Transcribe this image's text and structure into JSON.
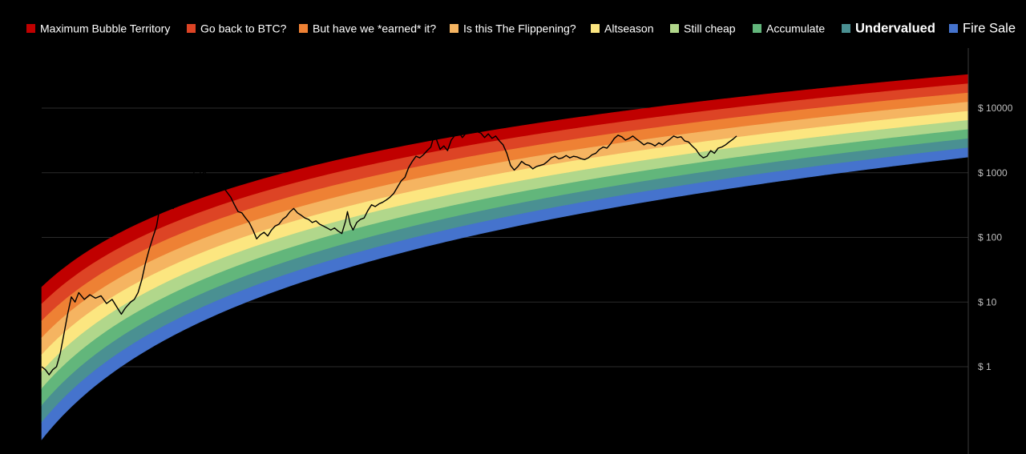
{
  "chart_data": {
    "type": "area",
    "title": "",
    "xlabel": "",
    "ylabel": "",
    "y_scale": "log",
    "grid": true,
    "legend_position": "top",
    "ylim": [
      0.07,
      45000
    ],
    "y_ticks": [
      {
        "value": 10000,
        "label": "$ 10000"
      },
      {
        "value": 1000,
        "label": "$ 1000"
      },
      {
        "value": 100,
        "label": "$ 100"
      },
      {
        "value": 10,
        "label": "$ 10"
      },
      {
        "value": 1,
        "label": "$ 1"
      }
    ],
    "bands": [
      {
        "name": "Maximum Bubble Territory",
        "color": "#c00000",
        "emphasis": "normal"
      },
      {
        "name": "Go back to BTC?",
        "color": "#dd4425",
        "emphasis": "normal"
      },
      {
        "name": "But have we *earned* it?",
        "color": "#ee8134",
        "emphasis": "normal"
      },
      {
        "name": "Is this The Flippening?",
        "color": "#f5b461",
        "emphasis": "normal"
      },
      {
        "name": "Altseason",
        "color": "#fce680",
        "emphasis": "normal"
      },
      {
        "name": "Still cheap",
        "color": "#b1d78b",
        "emphasis": "normal"
      },
      {
        "name": "Accumulate",
        "color": "#62b67b",
        "emphasis": "normal"
      },
      {
        "name": "Undervalued",
        "color": "#4a9092",
        "emphasis": "bold"
      },
      {
        "name": "Fire Sale",
        "color": "#4573cd",
        "emphasis": "large"
      }
    ],
    "band_model": {
      "a": 0.1,
      "b": 3,
      "top_start": 17,
      "top_end": 33000,
      "bottom_start": 0.075,
      "bottom_end": 1750
    },
    "price_series": {
      "color": "#000000",
      "points": [
        [
          0.0,
          1.0
        ],
        [
          0.004,
          0.9
        ],
        [
          0.008,
          0.75
        ],
        [
          0.012,
          0.9
        ],
        [
          0.016,
          1.0
        ],
        [
          0.02,
          1.6
        ],
        [
          0.024,
          3.2
        ],
        [
          0.028,
          6.5
        ],
        [
          0.032,
          12
        ],
        [
          0.036,
          10
        ],
        [
          0.04,
          14
        ],
        [
          0.046,
          11
        ],
        [
          0.052,
          13
        ],
        [
          0.058,
          11.5
        ],
        [
          0.064,
          12.5
        ],
        [
          0.07,
          9.5
        ],
        [
          0.076,
          11
        ],
        [
          0.082,
          8
        ],
        [
          0.086,
          6.5
        ],
        [
          0.09,
          8
        ],
        [
          0.096,
          10
        ],
        [
          0.1,
          11
        ],
        [
          0.104,
          14
        ],
        [
          0.108,
          22
        ],
        [
          0.112,
          40
        ],
        [
          0.116,
          65
        ],
        [
          0.12,
          100
        ],
        [
          0.124,
          150
        ],
        [
          0.126,
          220
        ],
        [
          0.128,
          330
        ],
        [
          0.131,
          390
        ],
        [
          0.134,
          300
        ],
        [
          0.138,
          330
        ],
        [
          0.142,
          280
        ],
        [
          0.146,
          350
        ],
        [
          0.15,
          320
        ],
        [
          0.154,
          390
        ],
        [
          0.158,
          500
        ],
        [
          0.162,
          750
        ],
        [
          0.166,
          1250
        ],
        [
          0.169,
          1300
        ],
        [
          0.172,
          900
        ],
        [
          0.176,
          1050
        ],
        [
          0.18,
          800
        ],
        [
          0.184,
          600
        ],
        [
          0.188,
          700
        ],
        [
          0.192,
          750
        ],
        [
          0.196,
          600
        ],
        [
          0.2,
          500
        ],
        [
          0.204,
          420
        ],
        [
          0.208,
          320
        ],
        [
          0.212,
          250
        ],
        [
          0.216,
          240
        ],
        [
          0.22,
          200
        ],
        [
          0.224,
          170
        ],
        [
          0.228,
          130
        ],
        [
          0.232,
          95
        ],
        [
          0.236,
          110
        ],
        [
          0.24,
          120
        ],
        [
          0.244,
          105
        ],
        [
          0.248,
          130
        ],
        [
          0.252,
          150
        ],
        [
          0.256,
          160
        ],
        [
          0.26,
          190
        ],
        [
          0.264,
          210
        ],
        [
          0.268,
          250
        ],
        [
          0.272,
          280
        ],
        [
          0.276,
          240
        ],
        [
          0.28,
          220
        ],
        [
          0.284,
          200
        ],
        [
          0.288,
          190
        ],
        [
          0.292,
          170
        ],
        [
          0.296,
          180
        ],
        [
          0.3,
          160
        ],
        [
          0.304,
          150
        ],
        [
          0.308,
          140
        ],
        [
          0.312,
          130
        ],
        [
          0.316,
          140
        ],
        [
          0.32,
          125
        ],
        [
          0.324,
          115
        ],
        [
          0.328,
          180
        ],
        [
          0.33,
          250
        ],
        [
          0.333,
          160
        ],
        [
          0.336,
          130
        ],
        [
          0.34,
          170
        ],
        [
          0.344,
          190
        ],
        [
          0.348,
          200
        ],
        [
          0.352,
          260
        ],
        [
          0.356,
          320
        ],
        [
          0.36,
          300
        ],
        [
          0.364,
          330
        ],
        [
          0.368,
          350
        ],
        [
          0.372,
          380
        ],
        [
          0.376,
          420
        ],
        [
          0.38,
          480
        ],
        [
          0.384,
          600
        ],
        [
          0.388,
          750
        ],
        [
          0.392,
          850
        ],
        [
          0.396,
          1200
        ],
        [
          0.4,
          1500
        ],
        [
          0.404,
          1800
        ],
        [
          0.408,
          1700
        ],
        [
          0.412,
          1900
        ],
        [
          0.416,
          2200
        ],
        [
          0.42,
          2500
        ],
        [
          0.424,
          4000
        ],
        [
          0.427,
          3000
        ],
        [
          0.43,
          2300
        ],
        [
          0.434,
          2600
        ],
        [
          0.438,
          2200
        ],
        [
          0.442,
          3200
        ],
        [
          0.446,
          3800
        ],
        [
          0.45,
          4300
        ],
        [
          0.454,
          3500
        ],
        [
          0.458,
          4100
        ],
        [
          0.462,
          4700
        ],
        [
          0.466,
          4600
        ],
        [
          0.47,
          4300
        ],
        [
          0.474,
          4100
        ],
        [
          0.478,
          3500
        ],
        [
          0.482,
          4000
        ],
        [
          0.486,
          3400
        ],
        [
          0.49,
          3700
        ],
        [
          0.494,
          3100
        ],
        [
          0.498,
          2700
        ],
        [
          0.502,
          2000
        ],
        [
          0.506,
          1300
        ],
        [
          0.51,
          1100
        ],
        [
          0.514,
          1250
        ],
        [
          0.518,
          1500
        ],
        [
          0.522,
          1350
        ],
        [
          0.526,
          1300
        ],
        [
          0.53,
          1150
        ],
        [
          0.534,
          1250
        ],
        [
          0.538,
          1300
        ],
        [
          0.542,
          1350
        ],
        [
          0.546,
          1500
        ],
        [
          0.55,
          1700
        ],
        [
          0.554,
          1800
        ],
        [
          0.558,
          1650
        ],
        [
          0.562,
          1700
        ],
        [
          0.566,
          1850
        ],
        [
          0.57,
          1700
        ],
        [
          0.574,
          1800
        ],
        [
          0.578,
          1750
        ],
        [
          0.582,
          1650
        ],
        [
          0.586,
          1600
        ],
        [
          0.59,
          1700
        ],
        [
          0.594,
          1900
        ],
        [
          0.598,
          2000
        ],
        [
          0.602,
          2300
        ],
        [
          0.606,
          2500
        ],
        [
          0.61,
          2400
        ],
        [
          0.614,
          2800
        ],
        [
          0.618,
          3400
        ],
        [
          0.622,
          3800
        ],
        [
          0.626,
          3600
        ],
        [
          0.63,
          3200
        ],
        [
          0.634,
          3400
        ],
        [
          0.638,
          3700
        ],
        [
          0.642,
          3300
        ],
        [
          0.646,
          3000
        ],
        [
          0.65,
          2700
        ],
        [
          0.654,
          2900
        ],
        [
          0.658,
          2800
        ],
        [
          0.662,
          2600
        ],
        [
          0.666,
          2900
        ],
        [
          0.67,
          2700
        ],
        [
          0.674,
          3000
        ],
        [
          0.678,
          3300
        ],
        [
          0.682,
          3700
        ],
        [
          0.686,
          3500
        ],
        [
          0.69,
          3600
        ],
        [
          0.694,
          3100
        ],
        [
          0.698,
          3000
        ],
        [
          0.702,
          2600
        ],
        [
          0.706,
          2300
        ],
        [
          0.71,
          1900
        ],
        [
          0.714,
          1700
        ],
        [
          0.718,
          1800
        ],
        [
          0.722,
          2200
        ],
        [
          0.726,
          2000
        ],
        [
          0.73,
          2400
        ],
        [
          0.734,
          2500
        ],
        [
          0.738,
          2700
        ],
        [
          0.742,
          3000
        ],
        [
          0.746,
          3300
        ],
        [
          0.75,
          3700
        ]
      ]
    }
  }
}
